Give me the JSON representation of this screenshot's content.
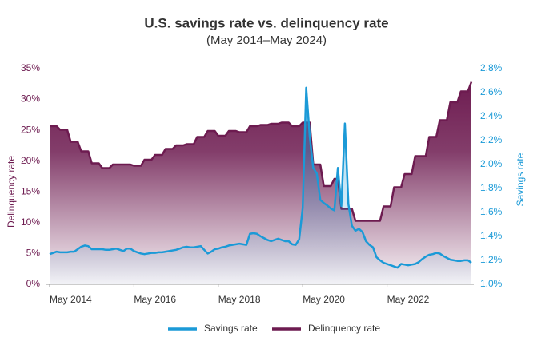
{
  "chart_data": {
    "type": "area",
    "title": "U.S. savings rate vs. delinquency rate",
    "subtitle": "(May 2014–May 2024)",
    "ylabel": "Delinquency rate",
    "y2label": "Savings rate",
    "yaxis_color": "#6d1b50",
    "y2axis_color": "#1b9ad7",
    "legend": "bottom",
    "categories": [
      "May 2014",
      null,
      null,
      null,
      null,
      null,
      null,
      null,
      null,
      null,
      null,
      null,
      null,
      null,
      null,
      null,
      null,
      null,
      null,
      null,
      null,
      null,
      null,
      null,
      "May 2016",
      null,
      null,
      null,
      null,
      null,
      null,
      null,
      null,
      null,
      null,
      null,
      null,
      null,
      null,
      null,
      null,
      null,
      null,
      null,
      null,
      null,
      null,
      null,
      "May 2018",
      null,
      null,
      null,
      null,
      null,
      null,
      null,
      null,
      null,
      null,
      null,
      null,
      null,
      null,
      null,
      null,
      null,
      null,
      null,
      null,
      null,
      null,
      null,
      "May 2020",
      null,
      null,
      null,
      null,
      null,
      null,
      null,
      null,
      null,
      null,
      null,
      null,
      null,
      null,
      null,
      null,
      null,
      null,
      null,
      null,
      null,
      null,
      null,
      "May 2022",
      null,
      null,
      null,
      null,
      null,
      null,
      null,
      null,
      null,
      null,
      null,
      null,
      null,
      null,
      null,
      null,
      null,
      null,
      null,
      null,
      null,
      null,
      null,
      null
    ],
    "ylim": [
      0,
      35
    ],
    "yticks": [
      {
        "value": 0,
        "label": "0%"
      },
      {
        "value": 5,
        "label": "5%"
      },
      {
        "value": 10,
        "label": "10%"
      },
      {
        "value": 15,
        "label": "15%"
      },
      {
        "value": 20,
        "label": "20%"
      },
      {
        "value": 25,
        "label": "25%"
      },
      {
        "value": 30,
        "label": "30%"
      },
      {
        "value": 35,
        "label": "35%"
      }
    ],
    "y2lim": [
      1.0,
      2.8
    ],
    "y2ticks": [
      {
        "value": 1.0,
        "label": "1.0%"
      },
      {
        "value": 1.2,
        "label": "1.2%"
      },
      {
        "value": 1.4,
        "label": "1.4%"
      },
      {
        "value": 1.6,
        "label": "1.6%"
      },
      {
        "value": 1.8,
        "label": "1.8%"
      },
      {
        "value": 2.0,
        "label": "2.0%"
      },
      {
        "value": 2.2,
        "label": "2.2%"
      },
      {
        "value": 2.4,
        "label": "2.4%"
      },
      {
        "value": 2.6,
        "label": "2.6%"
      },
      {
        "value": 2.8,
        "label": "2.8%"
      }
    ],
    "series": [
      {
        "name": "Savings rate",
        "color": "#1b9ad7",
        "values": [
          4.9,
          5.1,
          5.3,
          5.2,
          5.2,
          5.2,
          5.3,
          5.3,
          5.7,
          6.1,
          6.3,
          6.2,
          5.7,
          5.7,
          5.7,
          5.7,
          5.6,
          5.6,
          5.7,
          5.8,
          5.6,
          5.4,
          5.8,
          5.8,
          5.4,
          5.2,
          5.0,
          4.9,
          5.0,
          5.1,
          5.1,
          5.2,
          5.2,
          5.3,
          5.4,
          5.5,
          5.6,
          5.8,
          6.0,
          6.1,
          6.0,
          6.0,
          6.1,
          6.2,
          5.6,
          5.0,
          5.3,
          5.7,
          5.8,
          6.0,
          6.1,
          6.3,
          6.4,
          6.5,
          6.6,
          6.5,
          6.4,
          8.2,
          8.3,
          8.2,
          7.8,
          7.5,
          7.2,
          7.0,
          7.2,
          7.4,
          7.2,
          7.0,
          7.0,
          6.5,
          6.4,
          7.3,
          12.4,
          31.9,
          24.0,
          18.9,
          18.0,
          13.7,
          13.2,
          12.8,
          12.3,
          12.0,
          18.9,
          12.7,
          26.1,
          13.0,
          9.5,
          8.7,
          9.0,
          8.5,
          7.0,
          6.4,
          6.0,
          4.4,
          3.9,
          3.5,
          3.3,
          3.1,
          2.9,
          2.7,
          3.3,
          3.2,
          3.1,
          3.2,
          3.3,
          3.6,
          4.1,
          4.5,
          4.8,
          4.9,
          5.1,
          5.0,
          4.6,
          4.3,
          4.0,
          3.9,
          3.8,
          3.8,
          3.9,
          3.9,
          3.5
        ]
      },
      {
        "name": "Delinquency rate",
        "color": "#6d1b50",
        "axis": "y2",
        "values": [
          2.32,
          2.32,
          2.32,
          2.29,
          2.29,
          2.29,
          2.19,
          2.19,
          2.19,
          2.11,
          2.11,
          2.11,
          2.01,
          2.01,
          2.01,
          1.97,
          1.97,
          1.97,
          2.0,
          2.0,
          2.0,
          2.0,
          2.0,
          2.0,
          1.99,
          1.99,
          1.99,
          2.04,
          2.04,
          2.04,
          2.08,
          2.08,
          2.08,
          2.13,
          2.13,
          2.13,
          2.16,
          2.16,
          2.16,
          2.17,
          2.17,
          2.17,
          2.23,
          2.23,
          2.23,
          2.28,
          2.28,
          2.28,
          2.24,
          2.24,
          2.24,
          2.28,
          2.28,
          2.28,
          2.27,
          2.27,
          2.27,
          2.32,
          2.32,
          2.32,
          2.33,
          2.33,
          2.33,
          2.34,
          2.34,
          2.34,
          2.35,
          2.35,
          2.35,
          2.32,
          2.32,
          2.32,
          2.35,
          2.35,
          2.35,
          2.0,
          2.0,
          2.0,
          1.82,
          1.82,
          1.82,
          1.88,
          1.88,
          1.63,
          1.63,
          1.63,
          1.63,
          1.53,
          1.53,
          1.53,
          1.53,
          1.53,
          1.53,
          1.53,
          1.53,
          1.65,
          1.65,
          1.65,
          1.81,
          1.81,
          1.81,
          1.92,
          1.92,
          1.92,
          2.07,
          2.07,
          2.07,
          2.07,
          2.23,
          2.23,
          2.23,
          2.37,
          2.37,
          2.37,
          2.52,
          2.52,
          2.52,
          2.61,
          2.61,
          2.61,
          2.69
        ]
      }
    ]
  }
}
